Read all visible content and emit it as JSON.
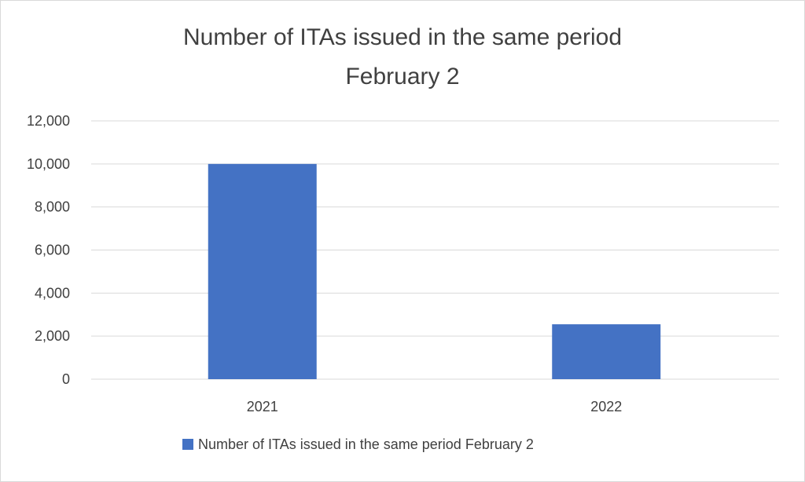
{
  "chart_data": {
    "type": "bar",
    "title": [
      "Number of ITAs issued in the same period",
      "February 2"
    ],
    "categories": [
      "2021",
      "2022"
    ],
    "series": [
      {
        "name": "Number of ITAs issued in the same period February 2",
        "values": [
          10000,
          2550
        ],
        "color": "#4472C4"
      }
    ],
    "ylim": [
      0,
      12000
    ],
    "yticks": [
      "0",
      "2,000",
      "4,000",
      "6,000",
      "8,000",
      "10,000",
      "12,000"
    ],
    "ytick_values": [
      0,
      2000,
      4000,
      6000,
      8000,
      10000,
      12000
    ],
    "grid": true,
    "legend_position": "bottom",
    "gridline_color": "#d9d9d9"
  }
}
